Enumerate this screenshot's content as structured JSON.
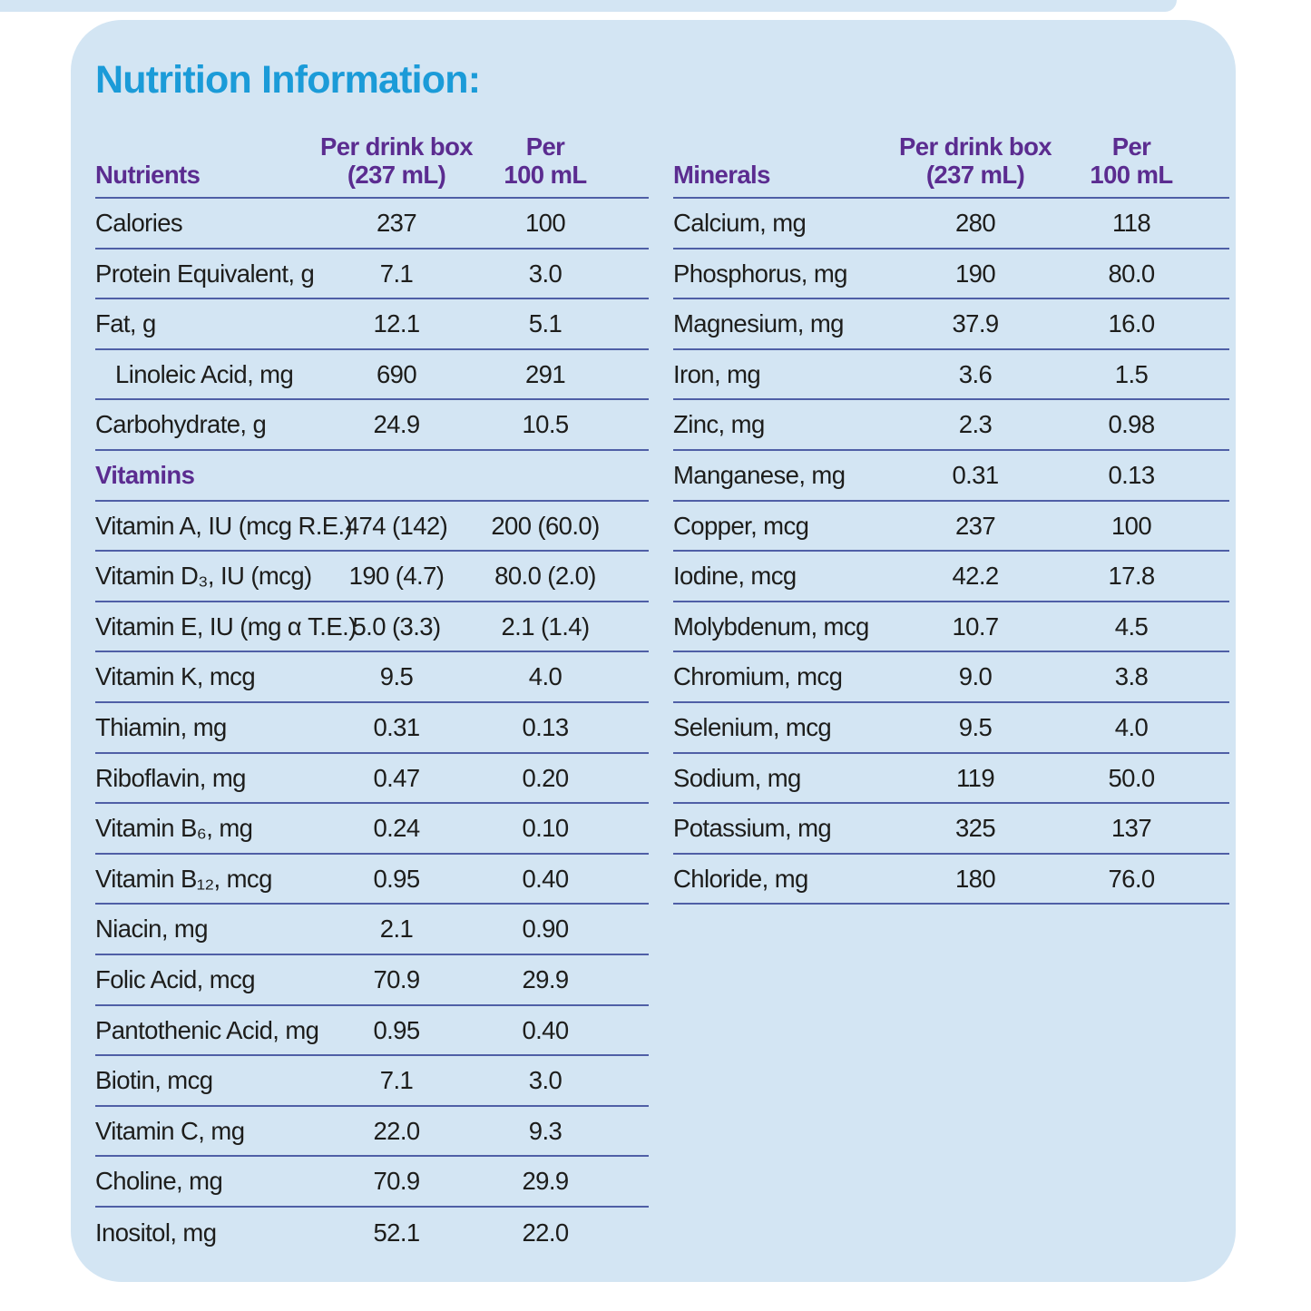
{
  "title": "Nutrition Information:",
  "colors": {
    "card_background": "#d3e5f3",
    "title_cyan": "#1b9bd8",
    "header_purple": "#5b2c90",
    "rule_blue": "#4f5fa6",
    "body_text": "#1d1d1b"
  },
  "left_table": {
    "header": {
      "col1": "Nutrients",
      "col2_line1": "Per drink box",
      "col2_line2": "(237 mL)",
      "col3_line1": "Per",
      "col3_line2": "100 mL"
    },
    "rows": [
      {
        "label": "Calories",
        "per_box": "237",
        "per_100": "100"
      },
      {
        "label": "Protein Equivalent, g",
        "per_box": "7.1",
        "per_100": "3.0"
      },
      {
        "label": "Fat, g",
        "per_box": "12.1",
        "per_100": "5.1"
      },
      {
        "label": "Linoleic Acid, mg",
        "per_box": "690",
        "per_100": "291",
        "indent": true
      },
      {
        "label": "Carbohydrate, g",
        "per_box": "24.9",
        "per_100": "10.5"
      },
      {
        "label": "Vitamins",
        "section": true
      },
      {
        "label": "Vitamin A, IU (mcg R.E.)",
        "per_box": "474 (142)",
        "per_100": "200 (60.0)"
      },
      {
        "label": "Vitamin D₃, IU (mcg)",
        "per_box": "190 (4.7)",
        "per_100": "80.0 (2.0)"
      },
      {
        "label": "Vitamin E, IU (mg α T.E.)",
        "per_box": "5.0 (3.3)",
        "per_100": "2.1 (1.4)"
      },
      {
        "label": "Vitamin K, mcg",
        "per_box": "9.5",
        "per_100": "4.0"
      },
      {
        "label": "Thiamin, mg",
        "per_box": "0.31",
        "per_100": "0.13"
      },
      {
        "label": "Riboflavin, mg",
        "per_box": "0.47",
        "per_100": "0.20"
      },
      {
        "label": "Vitamin B₆, mg",
        "per_box": "0.24",
        "per_100": "0.10"
      },
      {
        "label": "Vitamin B₁₂, mcg",
        "per_box": "0.95",
        "per_100": "0.40"
      },
      {
        "label": "Niacin, mg",
        "per_box": "2.1",
        "per_100": "0.90"
      },
      {
        "label": "Folic Acid, mcg",
        "per_box": "70.9",
        "per_100": "29.9"
      },
      {
        "label": "Pantothenic Acid, mg",
        "per_box": "0.95",
        "per_100": "0.40"
      },
      {
        "label": "Biotin, mcg",
        "per_box": "7.1",
        "per_100": "3.0"
      },
      {
        "label": "Vitamin C, mg",
        "per_box": "22.0",
        "per_100": "9.3"
      },
      {
        "label": "Choline, mg",
        "per_box": "70.9",
        "per_100": "29.9"
      },
      {
        "label": "Inositol, mg",
        "per_box": "52.1",
        "per_100": "22.0"
      }
    ]
  },
  "right_table": {
    "header": {
      "col1": "Minerals",
      "col2_line1": "Per drink box",
      "col2_line2": "(237 mL)",
      "col3_line1": "Per",
      "col3_line2": "100 mL"
    },
    "rows": [
      {
        "label": "Calcium, mg",
        "per_box": "280",
        "per_100": "118"
      },
      {
        "label": "Phosphorus, mg",
        "per_box": "190",
        "per_100": "80.0"
      },
      {
        "label": "Magnesium, mg",
        "per_box": "37.9",
        "per_100": "16.0"
      },
      {
        "label": "Iron, mg",
        "per_box": "3.6",
        "per_100": "1.5"
      },
      {
        "label": "Zinc, mg",
        "per_box": "2.3",
        "per_100": "0.98"
      },
      {
        "label": "Manganese, mg",
        "per_box": "0.31",
        "per_100": "0.13"
      },
      {
        "label": "Copper, mcg",
        "per_box": "237",
        "per_100": "100"
      },
      {
        "label": "Iodine, mcg",
        "per_box": "42.2",
        "per_100": "17.8"
      },
      {
        "label": "Molybdenum, mcg",
        "per_box": "10.7",
        "per_100": "4.5"
      },
      {
        "label": "Chromium, mcg",
        "per_box": "9.0",
        "per_100": "3.8"
      },
      {
        "label": "Selenium, mcg",
        "per_box": "9.5",
        "per_100": "4.0"
      },
      {
        "label": "Sodium, mg",
        "per_box": "119",
        "per_100": "50.0"
      },
      {
        "label": "Potassium, mg",
        "per_box": "325",
        "per_100": "137"
      },
      {
        "label": "Chloride, mg",
        "per_box": "180",
        "per_100": "76.0"
      }
    ]
  }
}
